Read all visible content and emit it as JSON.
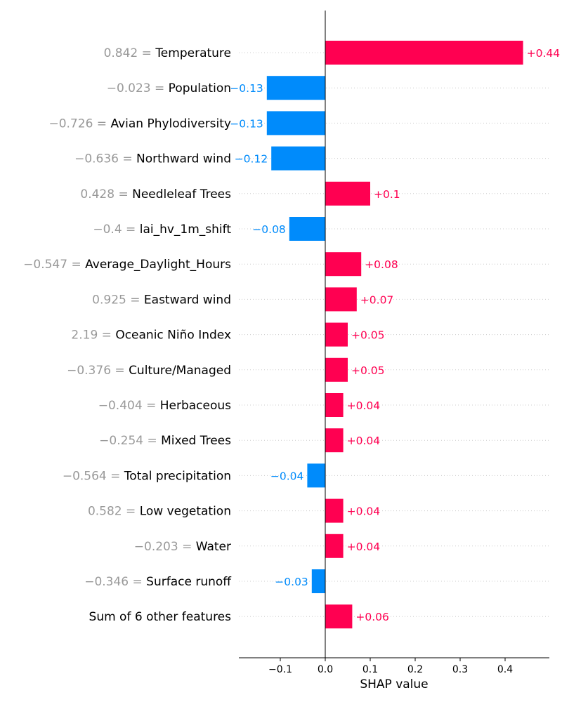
{
  "chart_data": {
    "type": "bar",
    "orientation": "horizontal",
    "chart_style": "shap-bar",
    "xlabel": "SHAP value",
    "xlim": [
      -0.19,
      0.5
    ],
    "xticks": [
      {
        "value": -0.1,
        "label": "−0.1"
      },
      {
        "value": 0.0,
        "label": "0.0"
      },
      {
        "value": 0.1,
        "label": "0.1"
      },
      {
        "value": 0.2,
        "label": "0.2"
      },
      {
        "value": 0.3,
        "label": "0.3"
      },
      {
        "value": 0.4,
        "label": "0.4"
      }
    ],
    "colors": {
      "positive": "#ff0051",
      "negative": "#008bfb",
      "feature_value": "#999999"
    },
    "rows": [
      {
        "feature_value": "0.842",
        "feature": "Temperature",
        "value": 0.44,
        "label": "+0.44"
      },
      {
        "feature_value": "−0.023",
        "feature": "Population",
        "value": -0.13,
        "label": "−0.13"
      },
      {
        "feature_value": "−0.726",
        "feature": "Avian Phylodiversity",
        "value": -0.13,
        "label": "−0.13"
      },
      {
        "feature_value": "−0.636",
        "feature": "Northward wind",
        "value": -0.12,
        "label": "−0.12"
      },
      {
        "feature_value": "0.428",
        "feature": "Needleleaf Trees",
        "value": 0.1,
        "label": "+0.1"
      },
      {
        "feature_value": "−0.4",
        "feature": "lai_hv_1m_shift",
        "value": -0.08,
        "label": "−0.08"
      },
      {
        "feature_value": "−0.547",
        "feature": "Average_Daylight_Hours",
        "value": 0.08,
        "label": "+0.08"
      },
      {
        "feature_value": "0.925",
        "feature": "Eastward wind",
        "value": 0.07,
        "label": "+0.07"
      },
      {
        "feature_value": "2.19",
        "feature": "Oceanic Niño Index",
        "value": 0.05,
        "label": "+0.05"
      },
      {
        "feature_value": "−0.376",
        "feature": "Culture/Managed",
        "value": 0.05,
        "label": "+0.05"
      },
      {
        "feature_value": "−0.404",
        "feature": "Herbaceous",
        "value": 0.04,
        "label": "+0.04"
      },
      {
        "feature_value": "−0.254",
        "feature": "Mixed Trees",
        "value": 0.04,
        "label": "+0.04"
      },
      {
        "feature_value": "−0.564",
        "feature": "Total precipitation",
        "value": -0.04,
        "label": "−0.04"
      },
      {
        "feature_value": "0.582",
        "feature": "Low vegetation",
        "value": 0.04,
        "label": "+0.04"
      },
      {
        "feature_value": "−0.203",
        "feature": "Water",
        "value": 0.04,
        "label": "+0.04"
      },
      {
        "feature_value": "−0.346",
        "feature": "Surface runoff",
        "value": -0.03,
        "label": "−0.03"
      },
      {
        "feature_value": "",
        "feature": "Sum of 6 other features",
        "value": 0.06,
        "label": "+0.06"
      }
    ]
  }
}
